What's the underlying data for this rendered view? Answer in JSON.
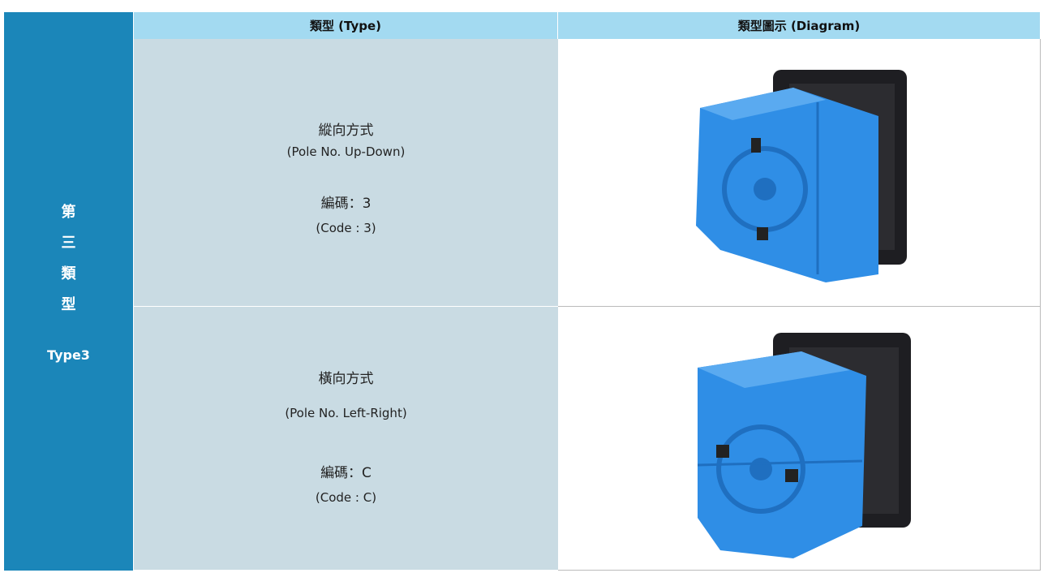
{
  "side": {
    "chars": [
      "第",
      "三",
      "類",
      "型"
    ],
    "label": "Type3"
  },
  "header": {
    "type": "類型 (Type)",
    "diagram": "類型圖示 (Diagram)"
  },
  "rows": [
    {
      "name": "縱向方式",
      "en": "(Pole No. Up-Down)",
      "code": "編碼：3",
      "code_en": "(Code : 3)"
    },
    {
      "name": "橫向方式",
      "en": "(Pole No. Left-Right)",
      "code": "編碼：C",
      "code_en": "(Code : C)"
    }
  ]
}
